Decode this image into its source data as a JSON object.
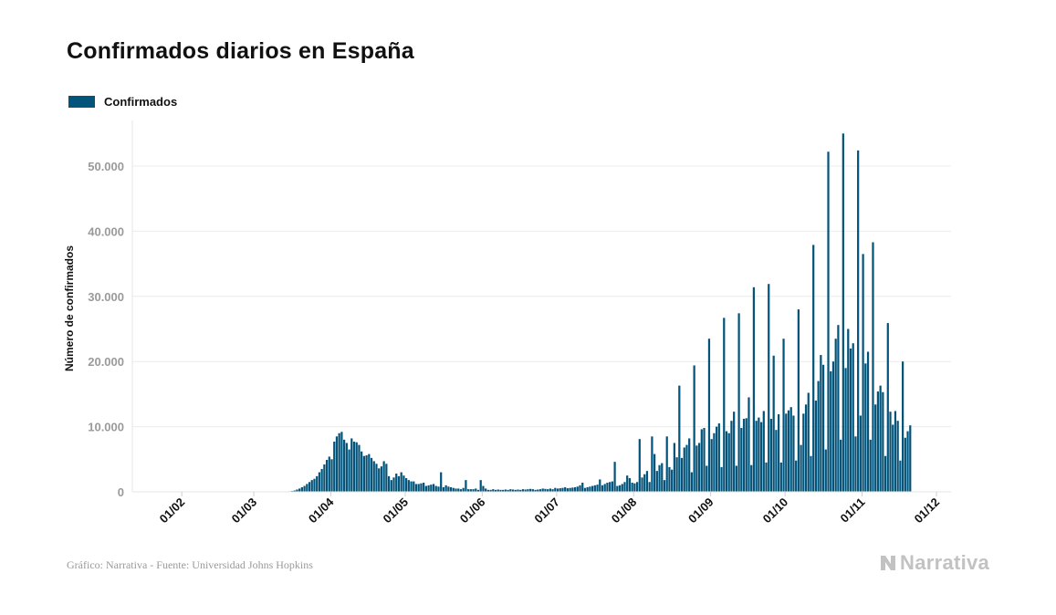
{
  "title": "Confirmados diarios en España",
  "legend": {
    "label": "Confirmados",
    "color": "#03547b"
  },
  "footer": {
    "source": "Gráfico: Narrativa - Fuente: Universidad Johns Hopkins",
    "brand": "Narrativa"
  },
  "chart_data": {
    "type": "bar",
    "ylabel": "Número de confirmados",
    "ylim": [
      0,
      57000
    ],
    "yticks": [
      0,
      10000,
      20000,
      30000,
      40000,
      50000
    ],
    "ytick_labels": [
      "0",
      "10.000",
      "20.000",
      "30.000",
      "40.000",
      "50.000"
    ],
    "x_start": "2020-01-22",
    "xtick_labels": [
      {
        "date": "2020-02-01",
        "label": "01/02"
      },
      {
        "date": "2020-03-01",
        "label": "01/03"
      },
      {
        "date": "2020-04-01",
        "label": "01/04"
      },
      {
        "date": "2020-05-01",
        "label": "01/05"
      },
      {
        "date": "2020-06-01",
        "label": "01/06"
      },
      {
        "date": "2020-07-01",
        "label": "01/07"
      },
      {
        "date": "2020-08-01",
        "label": "01/08"
      },
      {
        "date": "2020-09-01",
        "label": "01/09"
      },
      {
        "date": "2020-10-01",
        "label": "01/10"
      },
      {
        "date": "2020-11-01",
        "label": "01/11"
      },
      {
        "date": "2020-12-01",
        "label": "01/12"
      }
    ],
    "grid": true,
    "legend_position": "top-left",
    "series": [
      {
        "name": "Confirmados",
        "color": "#03547b",
        "values": [
          0,
          0,
          0,
          0,
          0,
          0,
          0,
          0,
          0,
          0,
          0,
          0,
          0,
          0,
          0,
          0,
          0,
          0,
          0,
          0,
          0,
          0,
          0,
          0,
          0,
          0,
          0,
          0,
          0,
          0,
          0,
          0,
          0,
          0,
          0,
          0,
          0,
          0,
          0,
          0,
          0,
          0,
          0,
          0,
          0,
          0,
          0,
          0,
          5,
          10,
          20,
          30,
          50,
          80,
          120,
          200,
          350,
          500,
          700,
          900,
          1200,
          1500,
          1800,
          2000,
          2400,
          3000,
          3500,
          4200,
          4900,
          5400,
          5000,
          7700,
          8500,
          9000,
          9200,
          8000,
          7500,
          6500,
          8200,
          7700,
          7600,
          7200,
          6200,
          5500,
          5600,
          5800,
          5200,
          4700,
          4300,
          3600,
          3900,
          4700,
          4300,
          2400,
          1800,
          2200,
          2800,
          2400,
          3000,
          2500,
          2100,
          1800,
          1600,
          1600,
          1200,
          1200,
          1300,
          1400,
          900,
          1000,
          1100,
          1200,
          900,
          800,
          3000,
          700,
          1000,
          800,
          700,
          600,
          500,
          500,
          400,
          600,
          1800,
          400,
          400,
          400,
          500,
          300,
          1800,
          900,
          500,
          300,
          300,
          400,
          300,
          350,
          300,
          300,
          350,
          300,
          400,
          350,
          300,
          350,
          300,
          400,
          350,
          400,
          450,
          400,
          300,
          350,
          400,
          500,
          450,
          400,
          500,
          400,
          600,
          500,
          550,
          600,
          700,
          550,
          600,
          650,
          700,
          800,
          1000,
          1400,
          600,
          700,
          800,
          900,
          1000,
          1100,
          1900,
          1000,
          1200,
          1400,
          1500,
          1600,
          4600,
          900,
          1000,
          1200,
          1500,
          2500,
          2100,
          1400,
          1300,
          1500,
          8100,
          2200,
          2700,
          3200,
          1500,
          8500,
          5800,
          3200,
          4100,
          4400,
          1800,
          8500,
          3800,
          3400,
          7500,
          5300,
          16300,
          5200,
          6800,
          7200,
          8200,
          3000,
          19400,
          7100,
          7500,
          9600,
          9800,
          4000,
          23500,
          8100,
          9000,
          10000,
          10500,
          3800,
          26700,
          9300,
          9000,
          10900,
          12300,
          4000,
          27400,
          9800,
          11200,
          11300,
          14500,
          4100,
          31400,
          10900,
          11400,
          10700,
          12400,
          4500,
          31900,
          11200,
          20900,
          9500,
          11900,
          4500,
          23500,
          12000,
          12500,
          13000,
          11700,
          4800,
          28000,
          7200,
          12000,
          13400,
          15200,
          5500,
          37900,
          14000,
          17000,
          21000,
          19500,
          6500,
          52200,
          18500,
          20000,
          23500,
          25600,
          8000,
          55000,
          19000,
          25000,
          22000,
          22800,
          8500,
          52400,
          11700,
          36500,
          19700,
          21500,
          8000,
          38300,
          13400,
          15400,
          16300,
          15300,
          5500,
          25900,
          12300,
          10300,
          12400,
          10900,
          4800,
          20000,
          8300,
          9300,
          10200
        ]
      }
    ]
  }
}
